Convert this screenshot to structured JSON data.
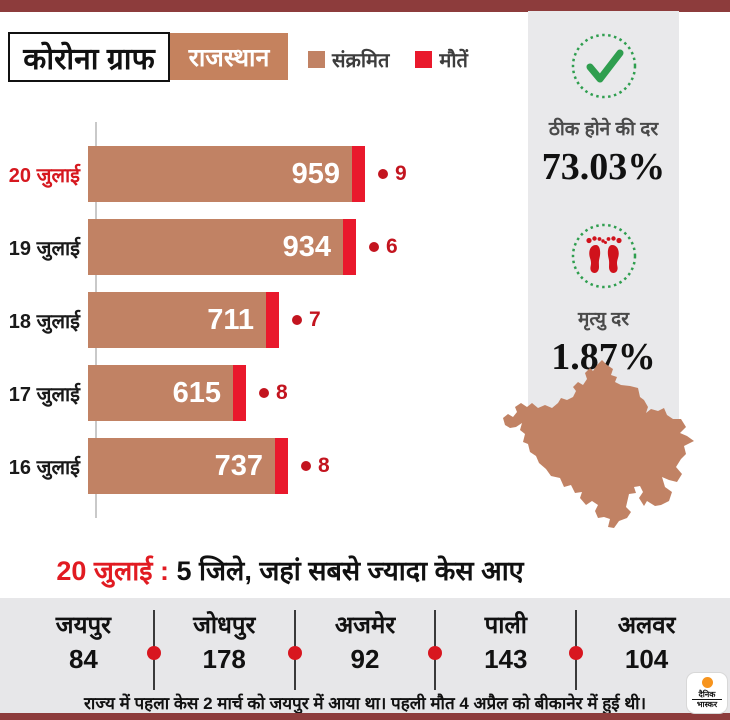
{
  "colors": {
    "accent_maroon": "#8d3c3c",
    "infected_brown": "#c18264",
    "deaths_red": "#e9192c",
    "label_crimson": "#c3141f",
    "heading_red": "#e11b22",
    "panel_gray": "#e9e9eb",
    "band_gray": "#e7e7e9",
    "check_green": "#2f9e4f",
    "logo_orange": "#f7941d"
  },
  "header": {
    "title": "कोरोना ग्राफ",
    "region": "राजस्थान"
  },
  "legend": [
    {
      "label": "संक्रमित",
      "color": "#c18264",
      "icon": "brown-square-swatch"
    },
    {
      "label": "मौतें",
      "color": "#e9192c",
      "icon": "red-square-swatch"
    }
  ],
  "chart_data": {
    "type": "bar",
    "orientation": "horizontal",
    "title": "कोरोना ग्राफ राजस्थान",
    "categories": [
      "20 जुलाई",
      "19 जुलाई",
      "18 जुलाई",
      "17 जुलाई",
      "16 जुलाई"
    ],
    "series": [
      {
        "name": "संक्रमित",
        "values": [
          959,
          934,
          711,
          615,
          737
        ]
      },
      {
        "name": "मौतें",
        "values": [
          9,
          6,
          7,
          8,
          8
        ]
      }
    ],
    "highlighted_category": "20 जुलाई",
    "legend_position": "top",
    "grid": false,
    "value_labels_inside_bar": true
  },
  "stats": [
    {
      "icon": "check-icon",
      "label": "ठीक होने की दर",
      "value": "73.03%"
    },
    {
      "icon": "feet-icon",
      "label": "मृत्यु दर",
      "value": "1.87%"
    }
  ],
  "map": {
    "name": "rajasthan-map-silhouette",
    "color": "#c18264"
  },
  "districts": {
    "heading_date": "20 जुलाई :",
    "heading_rest": " 5 जिले, जहां सबसे ज्यादा केस आए",
    "items": [
      {
        "name": "जयपुर",
        "value": "84"
      },
      {
        "name": "जोधपुर",
        "value": "178"
      },
      {
        "name": "अजमेर",
        "value": "92"
      },
      {
        "name": "पाली",
        "value": "143"
      },
      {
        "name": "अलवर",
        "value": "104"
      }
    ]
  },
  "footer": {
    "note": "राज्य में पहला केस 2 मार्च को जयपुर में आया था। पहली मौत 4 अप्रैल को बीकानेर में हुई थी।",
    "logo_line1": "दैनिक",
    "logo_line2": "भास्कर"
  }
}
